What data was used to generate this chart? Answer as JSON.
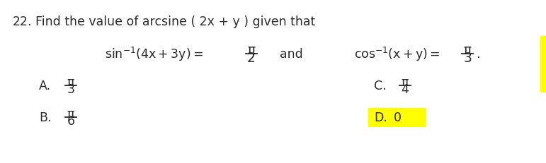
{
  "background_color": "#ffffff",
  "question_number": "22.",
  "question_text": "Find the value of arcsine ( 2x + y ) given that",
  "eq1_frac_num": "π",
  "eq1_frac_den": "2",
  "and_text": "and",
  "eq2_frac_num": "π",
  "eq2_frac_den": "3",
  "eq2_period": ".",
  "optA_label": "A.",
  "optA_num": "π",
  "optA_den": "3",
  "optB_label": "B.",
  "optB_num": "π",
  "optB_den": "6",
  "optC_label": "C.",
  "optC_num": "π",
  "optC_den": "4",
  "optD_label": "D.",
  "optD_val": "0",
  "optD_highlight": "#ffff00",
  "text_color": "#2b2b2b",
  "font_size": 12.5
}
